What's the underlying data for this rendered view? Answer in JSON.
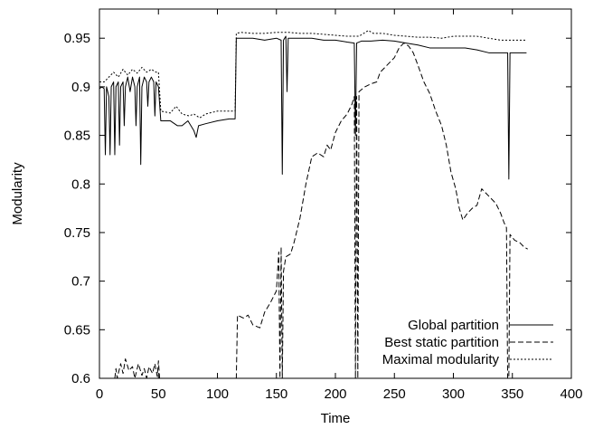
{
  "chart_data": {
    "type": "line",
    "title": "",
    "xlabel": "Time",
    "ylabel": "Modularity",
    "xlim": [
      0,
      400
    ],
    "ylim": [
      0.6,
      0.98
    ],
    "xticks": [
      0,
      50,
      100,
      150,
      200,
      250,
      300,
      350,
      400
    ],
    "yticks": [
      0.6,
      0.65,
      0.7,
      0.75,
      0.8,
      0.85,
      0.9,
      0.95
    ],
    "grid": false,
    "legend_position": "bottom-right",
    "series": [
      {
        "name": "Global partition",
        "style": "solid",
        "points": [
          [
            0,
            0.898
          ],
          [
            2,
            0.9
          ],
          [
            4,
            0.898
          ],
          [
            5,
            0.83
          ],
          [
            6,
            0.9
          ],
          [
            8,
            0.89
          ],
          [
            9,
            0.83
          ],
          [
            10,
            0.9
          ],
          [
            12,
            0.905
          ],
          [
            13,
            0.83
          ],
          [
            14,
            0.9
          ],
          [
            16,
            0.905
          ],
          [
            17,
            0.84
          ],
          [
            18,
            0.9
          ],
          [
            20,
            0.905
          ],
          [
            21,
            0.86
          ],
          [
            22,
            0.9
          ],
          [
            24,
            0.91
          ],
          [
            26,
            0.895
          ],
          [
            28,
            0.91
          ],
          [
            30,
            0.9
          ],
          [
            31,
            0.86
          ],
          [
            32,
            0.9
          ],
          [
            34,
            0.91
          ],
          [
            35,
            0.82
          ],
          [
            36,
            0.9
          ],
          [
            38,
            0.91
          ],
          [
            40,
            0.905
          ],
          [
            41,
            0.88
          ],
          [
            42,
            0.905
          ],
          [
            44,
            0.91
          ],
          [
            46,
            0.905
          ],
          [
            47,
            0.87
          ],
          [
            48,
            0.905
          ],
          [
            50,
            0.9
          ],
          [
            52,
            0.865
          ],
          [
            60,
            0.865
          ],
          [
            66,
            0.86
          ],
          [
            70,
            0.86
          ],
          [
            75,
            0.865
          ],
          [
            80,
            0.855
          ],
          [
            82,
            0.848
          ],
          [
            84,
            0.86
          ],
          [
            90,
            0.862
          ],
          [
            100,
            0.865
          ],
          [
            110,
            0.867
          ],
          [
            115,
            0.867
          ],
          [
            116,
            0.95
          ],
          [
            120,
            0.95
          ],
          [
            130,
            0.95
          ],
          [
            140,
            0.948
          ],
          [
            150,
            0.95
          ],
          [
            154,
            0.948
          ],
          [
            155,
            0.81
          ],
          [
            156,
            0.948
          ],
          [
            158,
            0.952
          ],
          [
            159,
            0.895
          ],
          [
            160,
            0.95
          ],
          [
            170,
            0.95
          ],
          [
            180,
            0.95
          ],
          [
            190,
            0.948
          ],
          [
            200,
            0.948
          ],
          [
            210,
            0.946
          ],
          [
            216,
            0.945
          ],
          [
            217,
            0.85
          ],
          [
            218,
            0.945
          ],
          [
            222,
            0.947
          ],
          [
            230,
            0.947
          ],
          [
            240,
            0.948
          ],
          [
            250,
            0.947
          ],
          [
            260,
            0.945
          ],
          [
            270,
            0.943
          ],
          [
            280,
            0.94
          ],
          [
            290,
            0.94
          ],
          [
            300,
            0.94
          ],
          [
            310,
            0.94
          ],
          [
            320,
            0.938
          ],
          [
            330,
            0.935
          ],
          [
            340,
            0.935
          ],
          [
            346,
            0.935
          ],
          [
            347,
            0.805
          ],
          [
            348,
            0.935
          ],
          [
            355,
            0.935
          ],
          [
            362,
            0.935
          ]
        ]
      },
      {
        "name": "Best static partition",
        "style": "dashed",
        "points": [
          [
            13,
            0.6
          ],
          [
            14,
            0.61
          ],
          [
            15,
            0.6
          ],
          [
            18,
            0.615
          ],
          [
            20,
            0.605
          ],
          [
            22,
            0.62
          ],
          [
            25,
            0.608
          ],
          [
            28,
            0.612
          ],
          [
            30,
            0.6
          ],
          [
            33,
            0.615
          ],
          [
            36,
            0.603
          ],
          [
            38,
            0.61
          ],
          [
            40,
            0.6
          ],
          [
            42,
            0.612
          ],
          [
            45,
            0.605
          ],
          [
            47,
            0.615
          ],
          [
            49,
            0.602
          ],
          [
            50,
            0.618
          ],
          [
            51,
            0.6
          ],
          [
            116,
            0.6
          ],
          [
            117,
            0.665
          ],
          [
            122,
            0.662
          ],
          [
            126,
            0.665
          ],
          [
            130,
            0.655
          ],
          [
            136,
            0.652
          ],
          [
            140,
            0.668
          ],
          [
            145,
            0.678
          ],
          [
            150,
            0.69
          ],
          [
            152,
            0.73
          ],
          [
            153,
            0.6
          ],
          [
            154,
            0.735
          ],
          [
            155,
            0.6
          ],
          [
            156,
            0.71
          ],
          [
            158,
            0.725
          ],
          [
            162,
            0.728
          ],
          [
            165,
            0.74
          ],
          [
            170,
            0.765
          ],
          [
            175,
            0.8
          ],
          [
            180,
            0.828
          ],
          [
            185,
            0.832
          ],
          [
            190,
            0.828
          ],
          [
            193,
            0.84
          ],
          [
            196,
            0.835
          ],
          [
            200,
            0.853
          ],
          [
            205,
            0.865
          ],
          [
            210,
            0.872
          ],
          [
            214,
            0.882
          ],
          [
            216,
            0.89
          ],
          [
            217,
            0.6
          ],
          [
            218,
            0.89
          ],
          [
            219,
            0.6
          ],
          [
            220,
            0.895
          ],
          [
            225,
            0.9
          ],
          [
            230,
            0.903
          ],
          [
            235,
            0.905
          ],
          [
            238,
            0.915
          ],
          [
            242,
            0.92
          ],
          [
            246,
            0.925
          ],
          [
            250,
            0.93
          ],
          [
            254,
            0.94
          ],
          [
            258,
            0.945
          ],
          [
            262,
            0.942
          ],
          [
            266,
            0.935
          ],
          [
            270,
            0.922
          ],
          [
            275,
            0.905
          ],
          [
            280,
            0.893
          ],
          [
            285,
            0.875
          ],
          [
            290,
            0.86
          ],
          [
            294,
            0.84
          ],
          [
            298,
            0.812
          ],
          [
            302,
            0.795
          ],
          [
            305,
            0.775
          ],
          [
            308,
            0.763
          ],
          [
            312,
            0.77
          ],
          [
            316,
            0.775
          ],
          [
            320,
            0.778
          ],
          [
            324,
            0.795
          ],
          [
            328,
            0.79
          ],
          [
            332,
            0.785
          ],
          [
            336,
            0.78
          ],
          [
            340,
            0.77
          ],
          [
            343,
            0.76
          ],
          [
            345,
            0.755
          ],
          [
            346,
            0.6
          ],
          [
            347,
            0.6
          ],
          [
            348,
            0.748
          ],
          [
            352,
            0.742
          ],
          [
            356,
            0.74
          ],
          [
            360,
            0.735
          ],
          [
            363,
            0.733
          ]
        ]
      },
      {
        "name": "Maximal modularity",
        "style": "dotted",
        "points": [
          [
            0,
            0.905
          ],
          [
            4,
            0.905
          ],
          [
            8,
            0.91
          ],
          [
            12,
            0.915
          ],
          [
            16,
            0.91
          ],
          [
            20,
            0.918
          ],
          [
            24,
            0.912
          ],
          [
            28,
            0.918
          ],
          [
            32,
            0.914
          ],
          [
            36,
            0.92
          ],
          [
            40,
            0.915
          ],
          [
            44,
            0.918
          ],
          [
            48,
            0.915
          ],
          [
            50,
            0.915
          ],
          [
            52,
            0.875
          ],
          [
            60,
            0.873
          ],
          [
            65,
            0.88
          ],
          [
            70,
            0.872
          ],
          [
            76,
            0.87
          ],
          [
            80,
            0.872
          ],
          [
            85,
            0.868
          ],
          [
            90,
            0.872
          ],
          [
            100,
            0.875
          ],
          [
            110,
            0.875
          ],
          [
            115,
            0.875
          ],
          [
            116,
            0.955
          ],
          [
            120,
            0.956
          ],
          [
            130,
            0.955
          ],
          [
            140,
            0.955
          ],
          [
            150,
            0.956
          ],
          [
            160,
            0.956
          ],
          [
            170,
            0.955
          ],
          [
            180,
            0.955
          ],
          [
            190,
            0.954
          ],
          [
            200,
            0.953
          ],
          [
            210,
            0.952
          ],
          [
            220,
            0.952
          ],
          [
            228,
            0.958
          ],
          [
            232,
            0.955
          ],
          [
            240,
            0.955
          ],
          [
            250,
            0.953
          ],
          [
            260,
            0.952
          ],
          [
            270,
            0.951
          ],
          [
            280,
            0.951
          ],
          [
            290,
            0.95
          ],
          [
            300,
            0.952
          ],
          [
            310,
            0.952
          ],
          [
            320,
            0.952
          ],
          [
            330,
            0.95
          ],
          [
            340,
            0.948
          ],
          [
            350,
            0.948
          ],
          [
            362,
            0.948
          ]
        ]
      }
    ]
  }
}
